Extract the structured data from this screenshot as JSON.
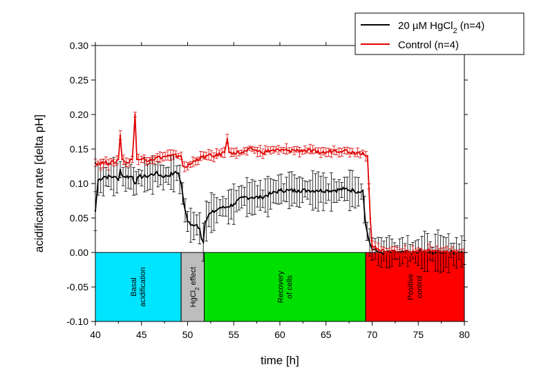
{
  "chart_data": {
    "type": "line",
    "xlabel": "time [h]",
    "ylabel": "acidification rate [delta pH]",
    "xlim": [
      40,
      80
    ],
    "ylim": [
      -0.1,
      0.3
    ],
    "x_ticks": [
      "40",
      "45",
      "50",
      "55",
      "60",
      "65",
      "70",
      "75",
      "80"
    ],
    "y_ticks": [
      "-0.10",
      "-0.05",
      "0.00",
      "0.05",
      "0.10",
      "0.15",
      "0.20",
      "0.25",
      "0.30"
    ],
    "legend": {
      "position": "top-right",
      "entries": [
        {
          "label_main": "20 µM HgCl",
          "label_sub": "2",
          "label_tail": " (n=4)",
          "color": "#000000"
        },
        {
          "label_main": "Control (n=4)",
          "label_sub": "",
          "label_tail": "",
          "color": "#e00000"
        }
      ]
    },
    "phases": [
      {
        "x0": 40,
        "x1": 49.3,
        "color": "#00e5ff",
        "line1": "Basal",
        "line2": "acidification"
      },
      {
        "x0": 49.3,
        "x1": 51.8,
        "color": "#bdbdbd",
        "line1": "HgCl",
        "line1_sub": "2",
        "line1_tail": " effect"
      },
      {
        "x0": 51.8,
        "x1": 69.3,
        "color": "#00e000",
        "line1": "Recovery",
        "line2": "of cells"
      },
      {
        "x0": 69.3,
        "x1": 80,
        "color": "#ff0000",
        "line1": "Positive",
        "line2": "control"
      }
    ],
    "series": [
      {
        "name": "20 µM HgCl2 (n=4)",
        "color": "#000000",
        "x": [
          40.0,
          40.3,
          41.0,
          42.0,
          42.5,
          42.7,
          43.0,
          44.0,
          44.3,
          44.7,
          45.5,
          46.5,
          47.5,
          48.5,
          49.0,
          49.3,
          49.6,
          50.0,
          50.5,
          51.0,
          51.3,
          51.5,
          51.7,
          51.9,
          52.3,
          53.0,
          53.5,
          54.0,
          55.0,
          56.0,
          57.0,
          58.0,
          59.0,
          60.0,
          61.0,
          62.0,
          63.0,
          64.0,
          65.0,
          66.0,
          67.0,
          68.0,
          68.5,
          69.0,
          69.3,
          69.6,
          70.0,
          70.5,
          71.0,
          72.0,
          73.0,
          74.0,
          75.0,
          75.2,
          75.4,
          76.0,
          77.0,
          78.0,
          79.0,
          80.0
        ],
        "y": [
          0.06,
          0.105,
          0.11,
          0.11,
          0.105,
          0.12,
          0.11,
          0.11,
          0.1,
          0.11,
          0.11,
          0.115,
          0.11,
          0.115,
          0.115,
          0.1,
          0.07,
          0.045,
          0.04,
          0.04,
          0.035,
          0.02,
          0.015,
          0.045,
          0.055,
          0.06,
          0.065,
          0.065,
          0.07,
          0.08,
          0.08,
          0.08,
          0.085,
          0.09,
          0.09,
          0.09,
          0.09,
          0.09,
          0.09,
          0.09,
          0.092,
          0.09,
          0.088,
          0.09,
          0.04,
          0.02,
          0.005,
          0.002,
          0.0,
          0.0,
          0.0,
          0.0,
          0.0,
          0.005,
          0.0,
          0.0,
          0.0,
          0.0,
          0.0,
          0.0
        ],
        "error_range": [
          0.01,
          0.03
        ]
      },
      {
        "name": "Control (n=4)",
        "color": "#e00000",
        "x": [
          40.0,
          41.0,
          42.0,
          42.5,
          42.7,
          42.9,
          43.5,
          44.0,
          44.3,
          44.5,
          45.0,
          46.0,
          47.0,
          48.0,
          49.0,
          49.3,
          49.5,
          50.0,
          51.0,
          52.0,
          53.0,
          54.0,
          54.3,
          54.5,
          54.7,
          55.0,
          56.0,
          57.0,
          58.0,
          59.0,
          60.0,
          61.0,
          62.0,
          63.0,
          64.0,
          65.0,
          66.0,
          67.0,
          68.0,
          69.0,
          69.5,
          69.8,
          70.0,
          70.5,
          71.0,
          72.0,
          73.0,
          74.0,
          75.0,
          76.0,
          77.0,
          78.0,
          79.0,
          80.0
        ],
        "y": [
          0.13,
          0.13,
          0.13,
          0.135,
          0.17,
          0.135,
          0.13,
          0.135,
          0.2,
          0.135,
          0.135,
          0.135,
          0.138,
          0.14,
          0.14,
          0.14,
          0.125,
          0.125,
          0.135,
          0.14,
          0.14,
          0.145,
          0.165,
          0.145,
          0.145,
          0.145,
          0.145,
          0.15,
          0.145,
          0.148,
          0.148,
          0.148,
          0.148,
          0.148,
          0.145,
          0.145,
          0.148,
          0.148,
          0.145,
          0.145,
          0.14,
          0.05,
          0.01,
          0.005,
          0.002,
          0.002,
          0.0,
          0.0,
          0.002,
          0.002,
          0.002,
          0.0,
          0.0,
          0.0
        ],
        "error_range": [
          0.003,
          0.008
        ]
      }
    ]
  }
}
